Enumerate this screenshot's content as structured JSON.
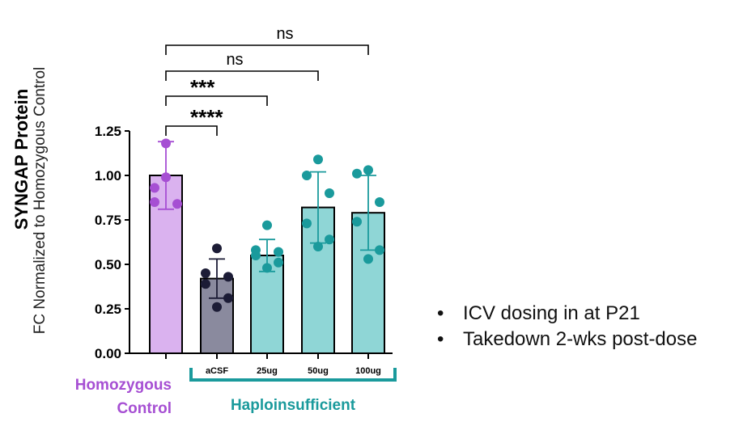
{
  "chart_data": {
    "type": "bar",
    "title": "",
    "ylabel_main": "SYNGAP Protein",
    "ylabel_sub": "FC Normalized to Homozygous Control",
    "ylim": [
      0,
      1.25
    ],
    "yticks": [
      "0.00",
      "0.25",
      "0.50",
      "0.75",
      "1.00",
      "1.25"
    ],
    "categories": [
      "",
      "aCSF",
      "25ug",
      "50ug",
      "100ug"
    ],
    "values": [
      1.0,
      0.42,
      0.55,
      0.82,
      0.79
    ],
    "error": [
      0.19,
      0.11,
      0.09,
      0.2,
      0.21
    ],
    "bar_colors": [
      "#dab2ef",
      "#8a8a9e",
      "#8fd6d6",
      "#8fd6d6",
      "#8fd6d6"
    ],
    "dot_colors": [
      "#a64fd3",
      "#1c1c36",
      "#1a9a9c",
      "#1a9a9c",
      "#1a9a9c"
    ],
    "points": [
      [
        1.18,
        0.99,
        0.93,
        0.85,
        0.84
      ],
      [
        0.59,
        0.45,
        0.43,
        0.39,
        0.31,
        0.26
      ],
      [
        0.72,
        0.58,
        0.57,
        0.55,
        0.51,
        0.48
      ],
      [
        1.09,
        1.0,
        0.9,
        0.73,
        0.64,
        0.6
      ],
      [
        1.03,
        1.01,
        0.85,
        0.74,
        0.58,
        0.53
      ]
    ],
    "significance": [
      {
        "to": 1,
        "label": "****"
      },
      {
        "to": 2,
        "label": "***"
      },
      {
        "to": 3,
        "label": "ns"
      },
      {
        "to": 4,
        "label": "ns"
      }
    ],
    "group_left": [
      "Homozygous",
      "Control"
    ],
    "group_right": "Haploinsufficient",
    "colors": {
      "purple": "#a64fd3",
      "teal": "#1a9a9c"
    }
  },
  "bullets": [
    "ICV dosing in at P21",
    "Takedown 2-wks post-dose"
  ],
  "bullet_glyph": "•"
}
